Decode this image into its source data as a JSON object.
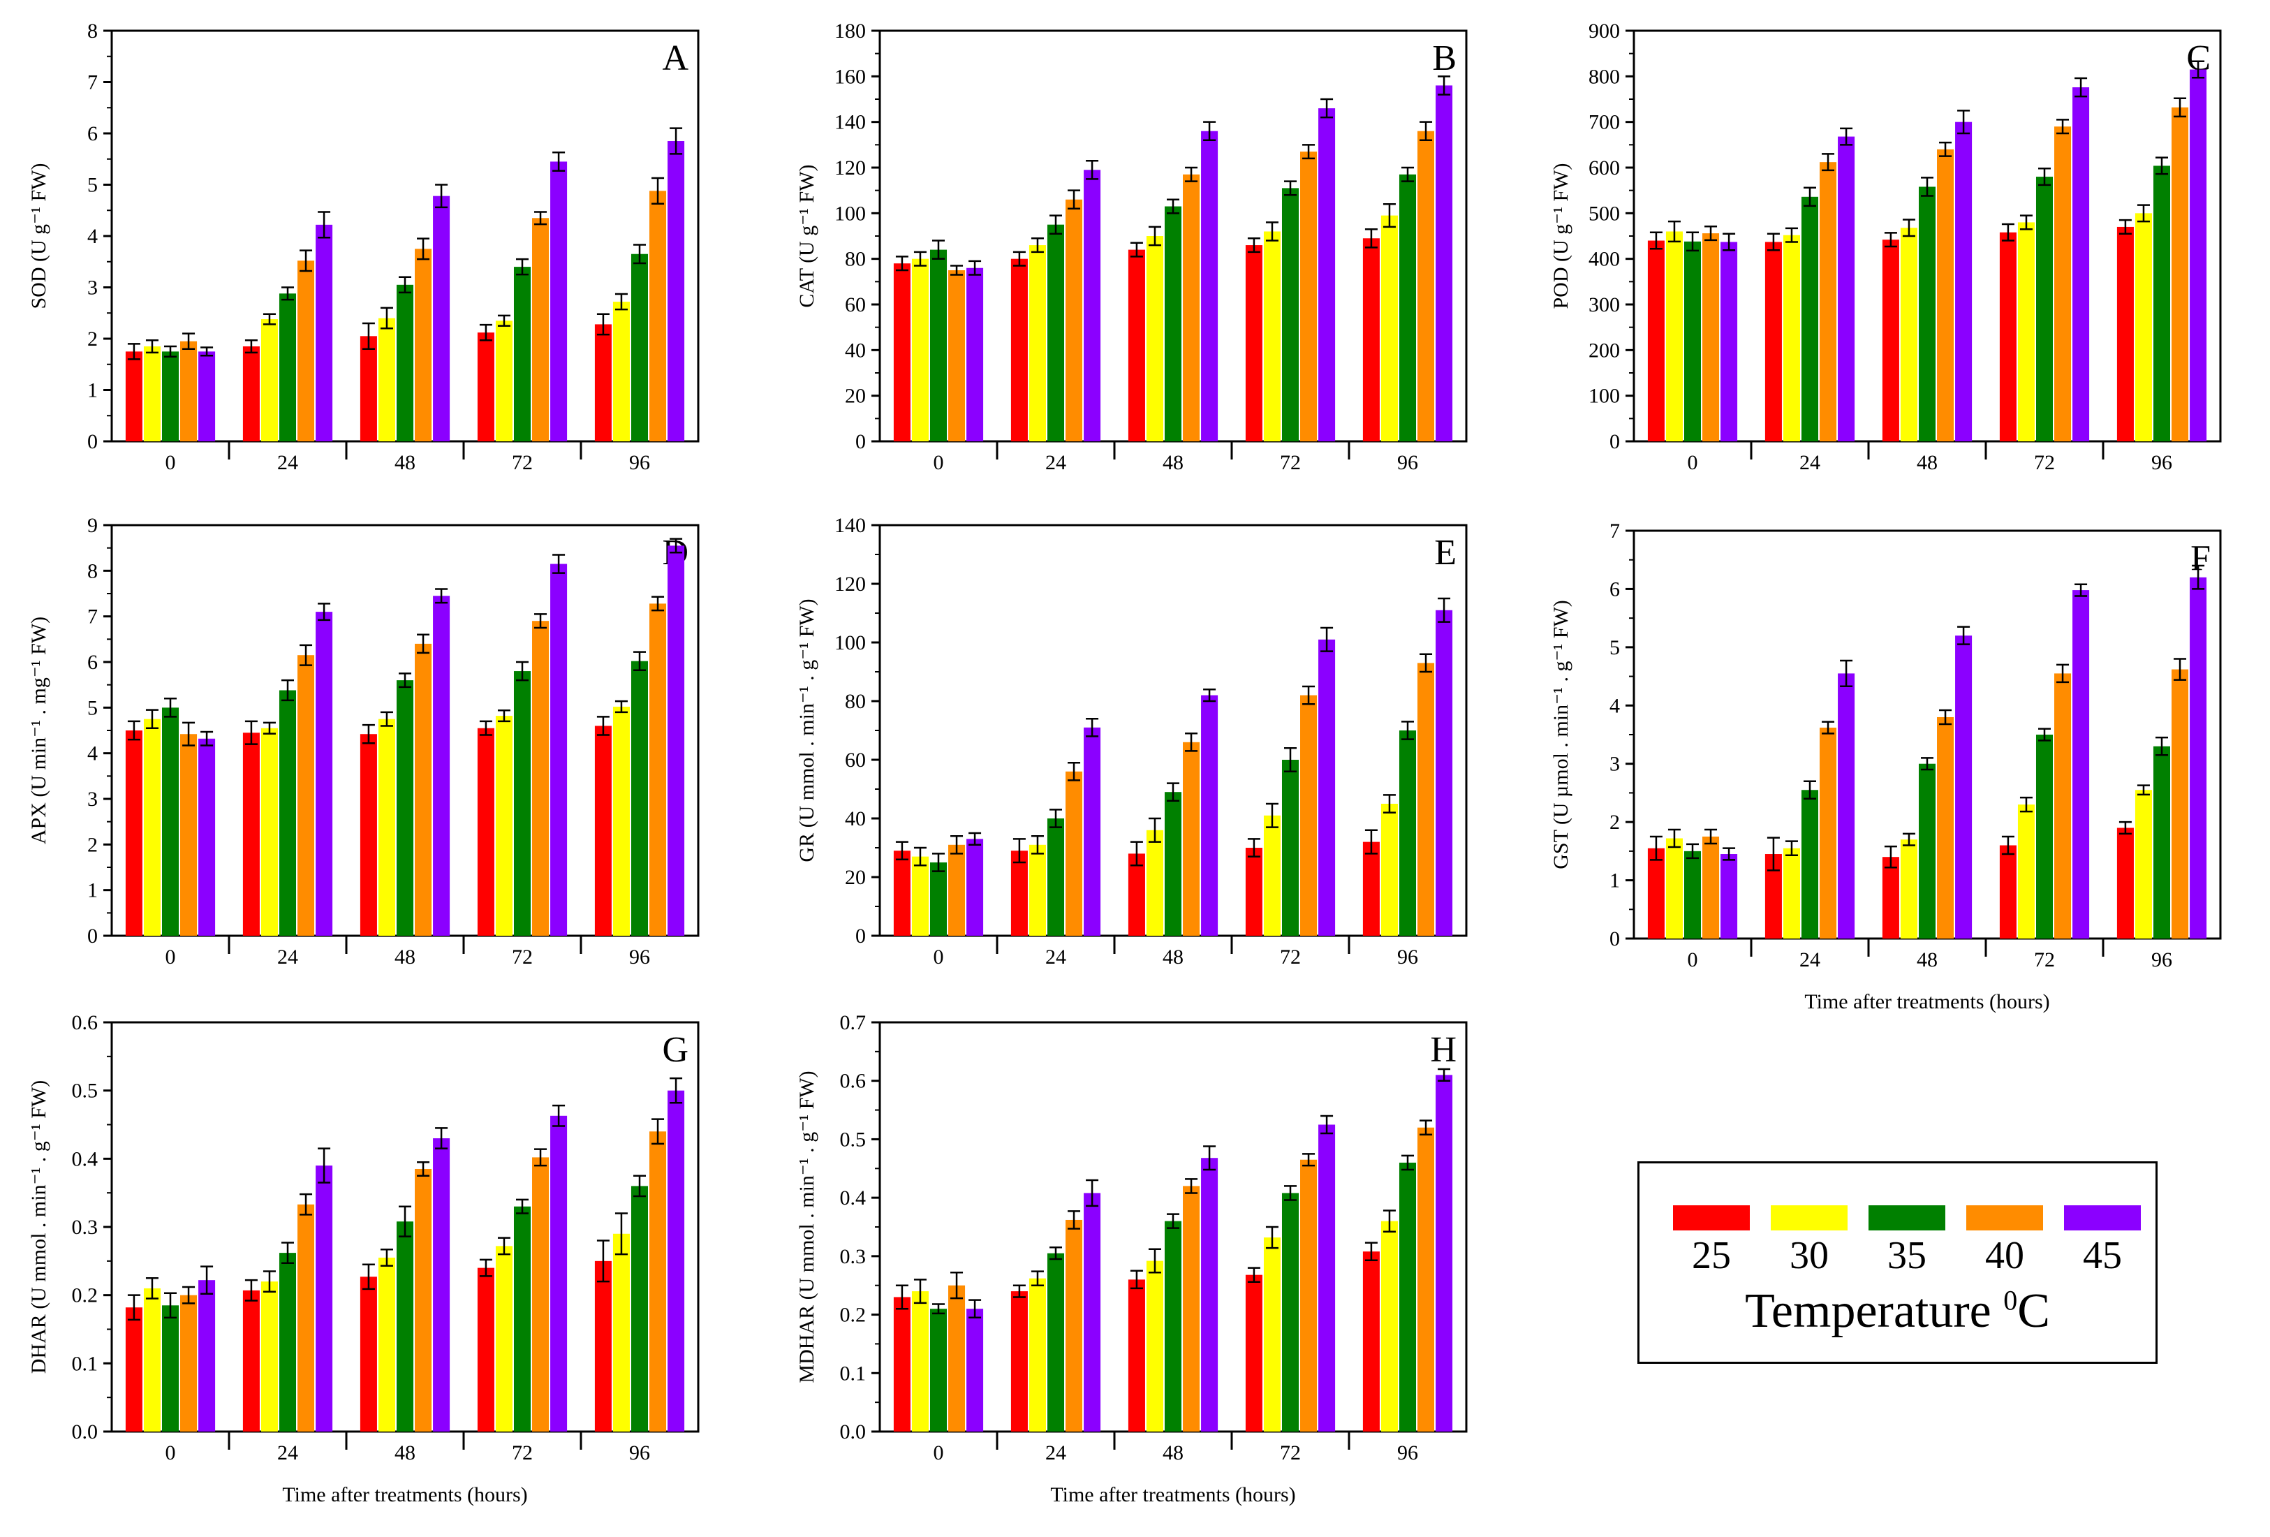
{
  "legend": {
    "title_main": "Temperature ",
    "title_sup": "0",
    "title_unit": "C",
    "items": [
      {
        "label": "25",
        "color": "#ff0000"
      },
      {
        "label": "30",
        "color": "#ffff00"
      },
      {
        "label": "35",
        "color": "#008000"
      },
      {
        "label": "40",
        "color": "#ff8c00"
      },
      {
        "label": "45",
        "color": "#8b00ff"
      }
    ]
  },
  "chart_data": [
    {
      "id": "A",
      "type": "bar",
      "letter": "A",
      "ylabel": "SOD (U g⁻¹ FW)",
      "xlabel": "",
      "categories": [
        "0",
        "24",
        "48",
        "72",
        "96"
      ],
      "ylim": [
        0,
        8
      ],
      "ystep": 1,
      "yticks": [
        "0",
        "1",
        "2",
        "3",
        "4",
        "5",
        "6",
        "7",
        "8"
      ],
      "series": [
        {
          "name": "25",
          "values": [
            1.75,
            1.85,
            2.05,
            2.12,
            2.28
          ],
          "errors": [
            0.15,
            0.12,
            0.25,
            0.15,
            0.2
          ]
        },
        {
          "name": "30",
          "values": [
            1.85,
            2.38,
            2.4,
            2.35,
            2.72
          ],
          "errors": [
            0.12,
            0.1,
            0.2,
            0.1,
            0.15
          ]
        },
        {
          "name": "35",
          "values": [
            1.75,
            2.88,
            3.05,
            3.4,
            3.65
          ],
          "errors": [
            0.1,
            0.12,
            0.15,
            0.15,
            0.18
          ]
        },
        {
          "name": "40",
          "values": [
            1.95,
            3.52,
            3.75,
            4.35,
            4.88
          ],
          "errors": [
            0.15,
            0.2,
            0.2,
            0.12,
            0.25
          ]
        },
        {
          "name": "45",
          "values": [
            1.75,
            4.22,
            4.78,
            5.45,
            5.85
          ],
          "errors": [
            0.08,
            0.25,
            0.22,
            0.18,
            0.25
          ]
        }
      ]
    },
    {
      "id": "B",
      "type": "bar",
      "letter": "B",
      "ylabel": "CAT (U g⁻¹ FW)",
      "xlabel": "",
      "categories": [
        "0",
        "24",
        "48",
        "72",
        "96"
      ],
      "ylim": [
        0,
        180
      ],
      "ystep": 20,
      "yticks": [
        "0",
        "20",
        "40",
        "60",
        "80",
        "100",
        "120",
        "140",
        "160",
        "180"
      ],
      "series": [
        {
          "name": "25",
          "values": [
            78,
            80,
            84,
            86,
            89
          ],
          "errors": [
            3,
            3,
            3,
            3,
            4
          ]
        },
        {
          "name": "30",
          "values": [
            80,
            86,
            90,
            92,
            99
          ],
          "errors": [
            3,
            3,
            4,
            4,
            5
          ]
        },
        {
          "name": "35",
          "values": [
            84,
            95,
            103,
            111,
            117
          ],
          "errors": [
            4,
            4,
            3,
            3,
            3
          ]
        },
        {
          "name": "40",
          "values": [
            75,
            106,
            117,
            127,
            136
          ],
          "errors": [
            2,
            4,
            3,
            3,
            4
          ]
        },
        {
          "name": "45",
          "values": [
            76,
            119,
            136,
            146,
            156
          ],
          "errors": [
            3,
            4,
            4,
            4,
            4
          ]
        }
      ]
    },
    {
      "id": "C",
      "type": "bar",
      "letter": "C",
      "ylabel": "POD (U g⁻¹ FW)",
      "xlabel": "",
      "categories": [
        "0",
        "24",
        "48",
        "72",
        "96"
      ],
      "ylim": [
        0,
        900
      ],
      "ystep": 100,
      "yticks": [
        "0",
        "100",
        "200",
        "300",
        "400",
        "500",
        "600",
        "700",
        "800",
        "900"
      ],
      "series": [
        {
          "name": "25",
          "values": [
            440,
            437,
            442,
            458,
            470
          ],
          "errors": [
            18,
            18,
            15,
            18,
            15
          ]
        },
        {
          "name": "30",
          "values": [
            460,
            452,
            468,
            480,
            500
          ],
          "errors": [
            22,
            15,
            18,
            15,
            18
          ]
        },
        {
          "name": "35",
          "values": [
            438,
            536,
            558,
            580,
            604
          ],
          "errors": [
            20,
            20,
            20,
            18,
            18
          ]
        },
        {
          "name": "40",
          "values": [
            456,
            612,
            640,
            690,
            732
          ],
          "errors": [
            15,
            18,
            15,
            15,
            20
          ]
        },
        {
          "name": "45",
          "values": [
            437,
            668,
            700,
            776,
            815
          ],
          "errors": [
            18,
            18,
            25,
            20,
            18
          ]
        }
      ]
    },
    {
      "id": "D",
      "type": "bar",
      "letter": "D",
      "ylabel": "APX (U min⁻¹ . mg⁻¹ FW)",
      "xlabel": "",
      "categories": [
        "0",
        "24",
        "48",
        "72",
        "96"
      ],
      "ylim": [
        0,
        9
      ],
      "ystep": 1,
      "yticks": [
        "0",
        "1",
        "2",
        "3",
        "4",
        "5",
        "6",
        "7",
        "8",
        "9"
      ],
      "series": [
        {
          "name": "25",
          "values": [
            4.5,
            4.45,
            4.42,
            4.55,
            4.6
          ],
          "errors": [
            0.2,
            0.25,
            0.2,
            0.15,
            0.2
          ]
        },
        {
          "name": "30",
          "values": [
            4.75,
            4.55,
            4.75,
            4.82,
            5.02
          ],
          "errors": [
            0.2,
            0.12,
            0.15,
            0.12,
            0.12
          ]
        },
        {
          "name": "35",
          "values": [
            5.0,
            5.38,
            5.6,
            5.8,
            6.02
          ],
          "errors": [
            0.2,
            0.22,
            0.15,
            0.2,
            0.2
          ]
        },
        {
          "name": "40",
          "values": [
            4.42,
            6.15,
            6.4,
            6.9,
            7.28
          ],
          "errors": [
            0.25,
            0.22,
            0.2,
            0.15,
            0.15
          ]
        },
        {
          "name": "45",
          "values": [
            4.32,
            7.1,
            7.45,
            8.15,
            8.55
          ],
          "errors": [
            0.15,
            0.18,
            0.15,
            0.2,
            0.15
          ]
        }
      ]
    },
    {
      "id": "E",
      "type": "bar",
      "letter": "E",
      "ylabel": "GR (U mmol . min⁻¹ . g⁻¹ FW)",
      "xlabel": "",
      "categories": [
        "0",
        "24",
        "48",
        "72",
        "96"
      ],
      "ylim": [
        0,
        140
      ],
      "ystep": 20,
      "yticks": [
        "0",
        "20",
        "40",
        "60",
        "80",
        "100",
        "120",
        "140"
      ],
      "series": [
        {
          "name": "25",
          "values": [
            29,
            29,
            28,
            30,
            32
          ],
          "errors": [
            3,
            4,
            4,
            3,
            4
          ]
        },
        {
          "name": "30",
          "values": [
            27,
            31,
            36,
            41,
            45
          ],
          "errors": [
            3,
            3,
            4,
            4,
            3
          ]
        },
        {
          "name": "35",
          "values": [
            25,
            40,
            49,
            60,
            70
          ],
          "errors": [
            3,
            3,
            3,
            4,
            3
          ]
        },
        {
          "name": "40",
          "values": [
            31,
            56,
            66,
            82,
            93
          ],
          "errors": [
            3,
            3,
            3,
            3,
            3
          ]
        },
        {
          "name": "45",
          "values": [
            33,
            71,
            82,
            101,
            111
          ],
          "errors": [
            2,
            3,
            2,
            4,
            4
          ]
        }
      ]
    },
    {
      "id": "F",
      "type": "bar",
      "letter": "F",
      "ylabel": "GST (U µmol . min⁻¹ . g⁻¹ FW)",
      "xlabel": "Time after treatments (hours)",
      "categories": [
        "0",
        "24",
        "48",
        "72",
        "96"
      ],
      "ylim": [
        0,
        7
      ],
      "ystep": 1,
      "yticks": [
        "0",
        "1",
        "2",
        "3",
        "4",
        "5",
        "6",
        "7"
      ],
      "series": [
        {
          "name": "25",
          "values": [
            1.55,
            1.45,
            1.4,
            1.6,
            1.9
          ],
          "errors": [
            0.2,
            0.28,
            0.18,
            0.15,
            0.1
          ]
        },
        {
          "name": "30",
          "values": [
            1.72,
            1.55,
            1.7,
            2.3,
            2.55
          ],
          "errors": [
            0.15,
            0.12,
            0.1,
            0.12,
            0.08
          ]
        },
        {
          "name": "35",
          "values": [
            1.5,
            2.55,
            3.0,
            3.5,
            3.3
          ],
          "errors": [
            0.12,
            0.15,
            0.1,
            0.1,
            0.15
          ]
        },
        {
          "name": "40",
          "values": [
            1.75,
            3.62,
            3.8,
            4.55,
            4.62
          ],
          "errors": [
            0.12,
            0.1,
            0.12,
            0.15,
            0.18
          ]
        },
        {
          "name": "45",
          "values": [
            1.45,
            4.55,
            5.2,
            5.98,
            6.2
          ],
          "errors": [
            0.1,
            0.22,
            0.15,
            0.1,
            0.2
          ]
        }
      ]
    },
    {
      "id": "G",
      "type": "bar",
      "letter": "G",
      "ylabel": "DHAR (U mmol . min⁻¹ . g⁻¹ FW)",
      "xlabel": "Time after treatments (hours)",
      "categories": [
        "0",
        "24",
        "48",
        "72",
        "96"
      ],
      "ylim": [
        0,
        0.6
      ],
      "ystep": 0.1,
      "yticks": [
        "0.0",
        "0.1",
        "0.2",
        "0.3",
        "0.4",
        "0.5",
        "0.6"
      ],
      "series": [
        {
          "name": "25",
          "values": [
            0.182,
            0.207,
            0.227,
            0.24,
            0.25
          ],
          "errors": [
            0.018,
            0.015,
            0.018,
            0.012,
            0.03
          ]
        },
        {
          "name": "30",
          "values": [
            0.21,
            0.22,
            0.255,
            0.272,
            0.29
          ],
          "errors": [
            0.015,
            0.015,
            0.012,
            0.012,
            0.03
          ]
        },
        {
          "name": "35",
          "values": [
            0.185,
            0.262,
            0.308,
            0.33,
            0.36
          ],
          "errors": [
            0.018,
            0.015,
            0.022,
            0.01,
            0.015
          ]
        },
        {
          "name": "40",
          "values": [
            0.2,
            0.333,
            0.385,
            0.402,
            0.44
          ],
          "errors": [
            0.012,
            0.015,
            0.01,
            0.012,
            0.018
          ]
        },
        {
          "name": "45",
          "values": [
            0.222,
            0.39,
            0.43,
            0.463,
            0.5
          ],
          "errors": [
            0.02,
            0.025,
            0.015,
            0.015,
            0.018
          ]
        }
      ]
    },
    {
      "id": "H",
      "type": "bar",
      "letter": "H",
      "ylabel": "MDHAR (U mmol . min⁻¹ . g⁻¹ FW)",
      "xlabel": "Time after treatments (hours)",
      "categories": [
        "0",
        "24",
        "48",
        "72",
        "96"
      ],
      "ylim": [
        0,
        0.7
      ],
      "ystep": 0.1,
      "yticks": [
        "0.0",
        "0.1",
        "0.2",
        "0.3",
        "0.4",
        "0.5",
        "0.6",
        "0.7"
      ],
      "series": [
        {
          "name": "25",
          "values": [
            0.23,
            0.24,
            0.26,
            0.268,
            0.308
          ],
          "errors": [
            0.02,
            0.01,
            0.015,
            0.012,
            0.015
          ]
        },
        {
          "name": "30",
          "values": [
            0.24,
            0.262,
            0.292,
            0.332,
            0.36
          ],
          "errors": [
            0.02,
            0.012,
            0.02,
            0.018,
            0.018
          ]
        },
        {
          "name": "35",
          "values": [
            0.21,
            0.305,
            0.36,
            0.408,
            0.46
          ],
          "errors": [
            0.008,
            0.01,
            0.012,
            0.012,
            0.012
          ]
        },
        {
          "name": "40",
          "values": [
            0.25,
            0.362,
            0.42,
            0.465,
            0.52
          ],
          "errors": [
            0.022,
            0.015,
            0.012,
            0.01,
            0.012
          ]
        },
        {
          "name": "45",
          "values": [
            0.21,
            0.408,
            0.468,
            0.525,
            0.61
          ],
          "errors": [
            0.015,
            0.022,
            0.02,
            0.015,
            0.01
          ]
        }
      ]
    }
  ]
}
